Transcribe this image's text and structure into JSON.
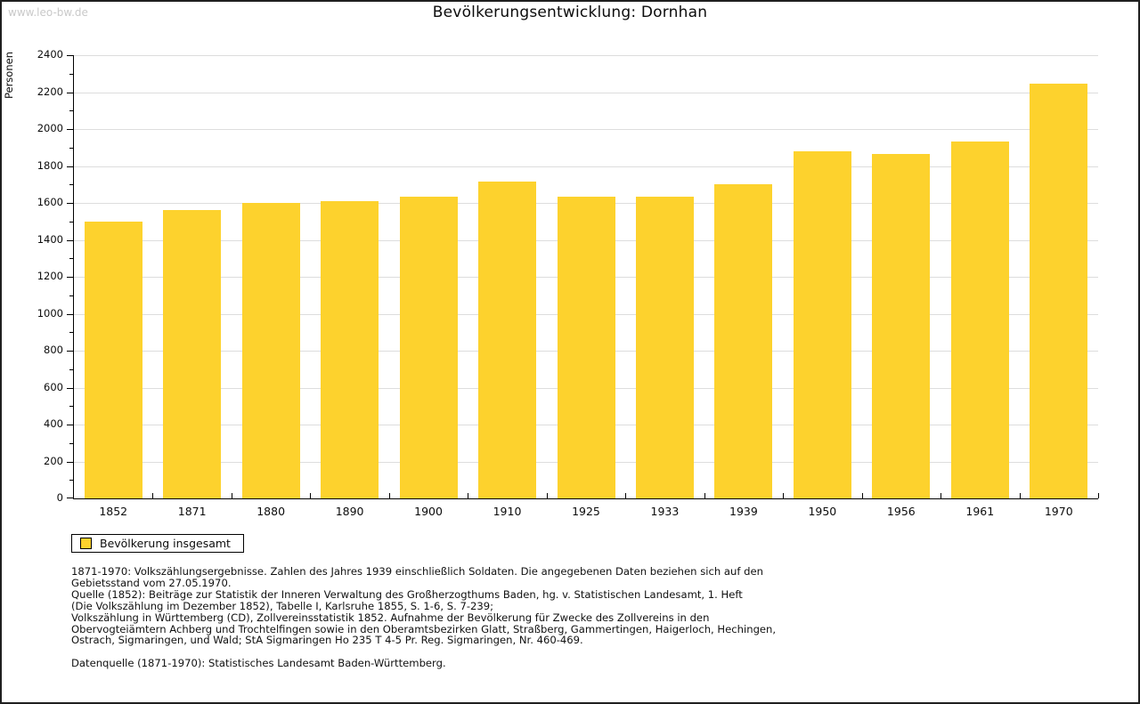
{
  "watermark": "www.leo-bw.de",
  "header": {
    "title": "Bevölkerungsentwicklung: Dornhan"
  },
  "legend": {
    "label": "Bevölkerung insgesamt"
  },
  "colors": {
    "bar": "#FDD22D",
    "grid": "#DDDDDD",
    "axis": "#000000",
    "watermark": "#C9C9C9"
  },
  "chart_data": {
    "type": "bar",
    "title": "Bevölkerungsentwicklung: Dornhan",
    "xlabel": "",
    "ylabel": "Personen",
    "categories": [
      "1852",
      "1871",
      "1880",
      "1890",
      "1900",
      "1910",
      "1925",
      "1933",
      "1939",
      "1950",
      "1956",
      "1961",
      "1970"
    ],
    "series": [
      {
        "name": "Bevölkerung insgesamt",
        "values": [
          1500,
          1560,
          1600,
          1610,
          1635,
          1715,
          1635,
          1635,
          1700,
          1880,
          1865,
          1935,
          2245
        ]
      }
    ],
    "ylim": [
      0,
      2400
    ],
    "y_major_step": 200,
    "y_minor_step": 100,
    "grid": true,
    "legend_position": "bottom-left",
    "bar_color": "#FDD22D"
  },
  "footnotes": {
    "lines": [
      "1871-1970: Volkszählungsergebnisse. Zahlen des Jahres 1939 einschließlich Soldaten. Die angegebenen Daten beziehen sich auf den",
      "Gebietsstand vom 27.05.1970.",
      "Quelle (1852): Beiträge zur Statistik der Inneren Verwaltung des Großherzogthums Baden, hg. v. Statistischen Landesamt, 1. Heft",
      "(Die Volkszählung im Dezember 1852), Tabelle I, Karlsruhe 1855, S. 1-6, S. 7-239;",
      "Volkszählung in Württemberg (CD), Zollvereinsstatistik 1852. Aufnahme der Bevölkerung für Zwecke des Zollvereins in den",
      "Obervogteiämtern Achberg und Trochtelfingen sowie in den Oberamtsbezirken Glatt, Straßberg, Gammertingen, Haigerloch, Hechingen,",
      "Ostrach, Sigmaringen, und Wald; StA Sigmaringen Ho 235 T 4-5 Pr. Reg. Sigmaringen, Nr. 460-469."
    ],
    "datasource": "Datenquelle (1871-1970): Statistisches Landesamt Baden-Württemberg."
  }
}
